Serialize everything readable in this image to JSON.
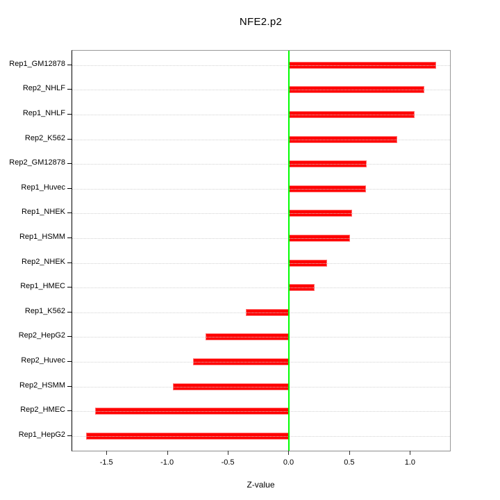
{
  "chart_data": {
    "type": "bar",
    "orientation": "horizontal",
    "title": "NFE2.p2",
    "xlabel": "Z-value",
    "categories": [
      "Rep1_GM12878",
      "Rep2_NHLF",
      "Rep1_NHLF",
      "Rep2_K562",
      "Rep2_GM12878",
      "Rep1_Huvec",
      "Rep1_NHEK",
      "Rep1_HSMM",
      "Rep2_NHEK",
      "Rep1_HMEC",
      "Rep1_K562",
      "Rep2_HepG2",
      "Rep2_Huvec",
      "Rep2_HSMM",
      "Rep2_HMEC",
      "Rep1_HepG2"
    ],
    "values": [
      1.21,
      1.11,
      1.03,
      0.89,
      0.64,
      0.63,
      0.52,
      0.5,
      0.31,
      0.21,
      -0.36,
      -0.69,
      -0.79,
      -0.96,
      -1.6,
      -1.67
    ],
    "xlim": [
      -1.787,
      1.324
    ],
    "xticks": [
      -1.5,
      -1.0,
      -0.5,
      0.0,
      0.5,
      1.0
    ],
    "xtick_labels": [
      "-1.5",
      "-1.0",
      "-0.5",
      "0.0",
      "0.5",
      "1.0"
    ],
    "grid": true,
    "legend": null,
    "colors": {
      "bar": "#ff0000",
      "zero_line": "#00ff00",
      "gridline": "#d2d2d2",
      "box": "#979797",
      "text": "#000000"
    }
  }
}
